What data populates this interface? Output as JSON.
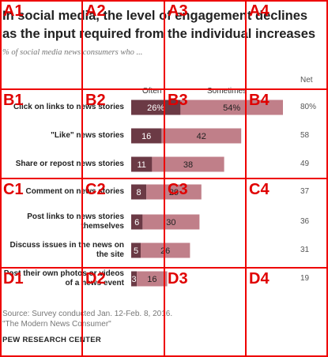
{
  "title": "In social media, the level of engagement declines as the input required from the individual increases",
  "subtitle": "% of social media news consumers who ...",
  "chart_data": {
    "type": "bar",
    "stacked": true,
    "orientation": "horizontal",
    "categories": [
      "Click on links to news stories",
      "\"Like\" news stories",
      "Share or repost news stories",
      "Comment on news stories",
      "Post links to news stories themselves",
      "Discuss issues in the news on the site",
      "Post their own photos or videos of a news event"
    ],
    "series": [
      {
        "name": "Often",
        "values": [
          26,
          16,
          11,
          8,
          6,
          5,
          3
        ],
        "color": "#6b3a45"
      },
      {
        "name": "Sometimes",
        "values": [
          54,
          42,
          38,
          29,
          30,
          26,
          16
        ],
        "color": "#c07f89"
      }
    ],
    "net": {
      "label": "Net",
      "values": [
        "80%",
        "58",
        "49",
        "37",
        "36",
        "31",
        "19"
      ]
    },
    "xlim": [
      0,
      80
    ]
  },
  "column_headers": {
    "often": "Often",
    "sometimes": "Sometimes",
    "net": "Net"
  },
  "source": "Source: Survey conducted Jan. 12-Feb. 8, 2016.",
  "report": "\"The Modern News Consumer\"",
  "brand": "PEW RESEARCH CENTER",
  "grid_overlay": {
    "color": "#ee0000",
    "cells": [
      "A1",
      "A2",
      "A3",
      "A4",
      "B1",
      "B2",
      "B3",
      "B4",
      "C1",
      "C2",
      "C3",
      "C4",
      "D1",
      "D2",
      "D3",
      "D4"
    ]
  }
}
